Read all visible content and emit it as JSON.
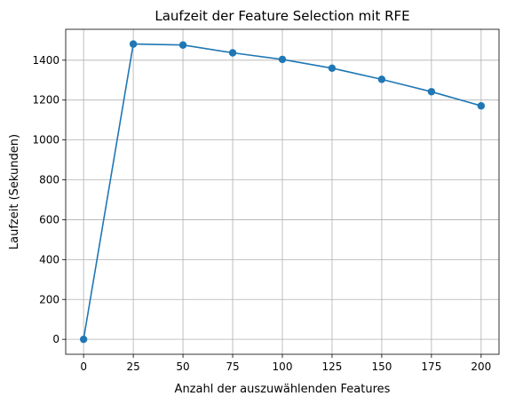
{
  "chart_data": {
    "type": "line",
    "title": "Laufzeit der Feature Selection mit RFE",
    "xlabel": "Anzahl der auszuwählenden Features",
    "ylabel": "Laufzeit (Sekunden)",
    "x": [
      0,
      25,
      50,
      75,
      100,
      125,
      150,
      175,
      200
    ],
    "series": [
      {
        "values": [
          0,
          1481,
          1476,
          1437,
          1404,
          1360,
          1304,
          1242,
          1171
        ],
        "color": "#1f77b4",
        "marker": "circle"
      }
    ],
    "xlim": [
      -9,
      209
    ],
    "ylim": [
      -75,
      1555
    ],
    "xticks": [
      0,
      25,
      50,
      75,
      100,
      125,
      150,
      175,
      200
    ],
    "yticks": [
      0,
      200,
      400,
      600,
      800,
      1000,
      1200,
      1400
    ],
    "grid": true,
    "legend": "none"
  }
}
